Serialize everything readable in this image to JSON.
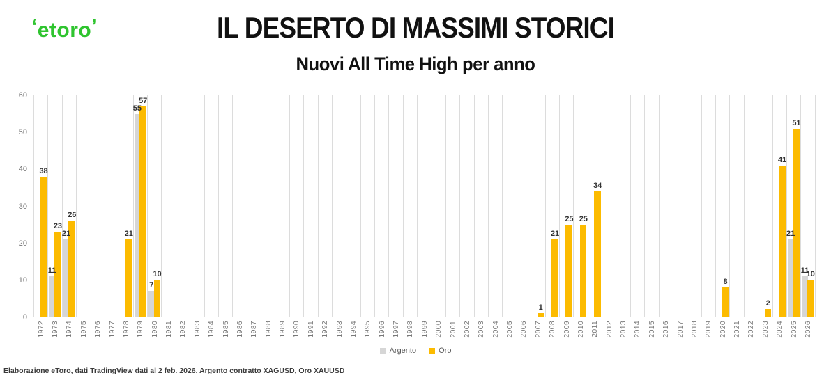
{
  "header": {
    "logo": "etoro",
    "title": "IL DESERTO DI MASSIMI STORICI",
    "subtitle": "Nuovi All Time High per anno"
  },
  "chart_data": {
    "type": "bar",
    "title": "IL DESERTO DI MASSIMI STORICI",
    "subtitle": "Nuovi All Time High per anno",
    "xlabel": "",
    "ylabel": "",
    "ylim": [
      0,
      60
    ],
    "yticks": [
      0,
      10,
      20,
      30,
      40,
      50,
      60
    ],
    "grid": "vertical-only",
    "legend_position": "bottom",
    "data_labels": "shown above non-zero bars",
    "categories": [
      "1972",
      "1973",
      "1974",
      "1975",
      "1976",
      "1977",
      "1978",
      "1979",
      "1980",
      "1981",
      "1982",
      "1983",
      "1984",
      "1985",
      "1986",
      "1987",
      "1988",
      "1989",
      "1990",
      "1991",
      "1992",
      "1993",
      "1994",
      "1995",
      "1996",
      "1997",
      "1998",
      "1999",
      "2000",
      "2001",
      "2002",
      "2003",
      "2004",
      "2005",
      "2006",
      "2007",
      "2008",
      "2009",
      "2010",
      "2011",
      "2012",
      "2013",
      "2014",
      "2015",
      "2016",
      "2017",
      "2018",
      "2019",
      "2020",
      "2021",
      "2022",
      "2023",
      "2024",
      "2025",
      "2026"
    ],
    "series": [
      {
        "name": "Argento",
        "color": "#d6d6d6",
        "values": [
          0,
          11,
          21,
          0,
          0,
          0,
          0,
          55,
          7,
          0,
          0,
          0,
          0,
          0,
          0,
          0,
          0,
          0,
          0,
          0,
          0,
          0,
          0,
          0,
          0,
          0,
          0,
          0,
          0,
          0,
          0,
          0,
          0,
          0,
          0,
          0,
          0,
          0,
          0,
          0,
          0,
          0,
          0,
          0,
          0,
          0,
          0,
          0,
          0,
          0,
          0,
          0,
          0,
          21,
          11
        ]
      },
      {
        "name": "Oro",
        "color": "#fcbb00",
        "values": [
          38,
          23,
          26,
          0,
          0,
          0,
          21,
          57,
          10,
          0,
          0,
          0,
          0,
          0,
          0,
          0,
          0,
          0,
          0,
          0,
          0,
          0,
          0,
          0,
          0,
          0,
          0,
          0,
          0,
          0,
          0,
          0,
          0,
          0,
          0,
          1,
          21,
          25,
          25,
          34,
          0,
          0,
          0,
          0,
          0,
          0,
          0,
          0,
          8,
          0,
          0,
          2,
          41,
          51,
          10
        ]
      }
    ]
  },
  "legend": {
    "items": [
      {
        "label": "Argento",
        "color": "#d6d6d6"
      },
      {
        "label": "Oro",
        "color": "#fcbb00"
      }
    ]
  },
  "footer": {
    "note": "Elaborazione eToro, dati TradingView dati al 2 feb. 2026. Argento contratto XAGUSD, Oro XAUUSD"
  }
}
